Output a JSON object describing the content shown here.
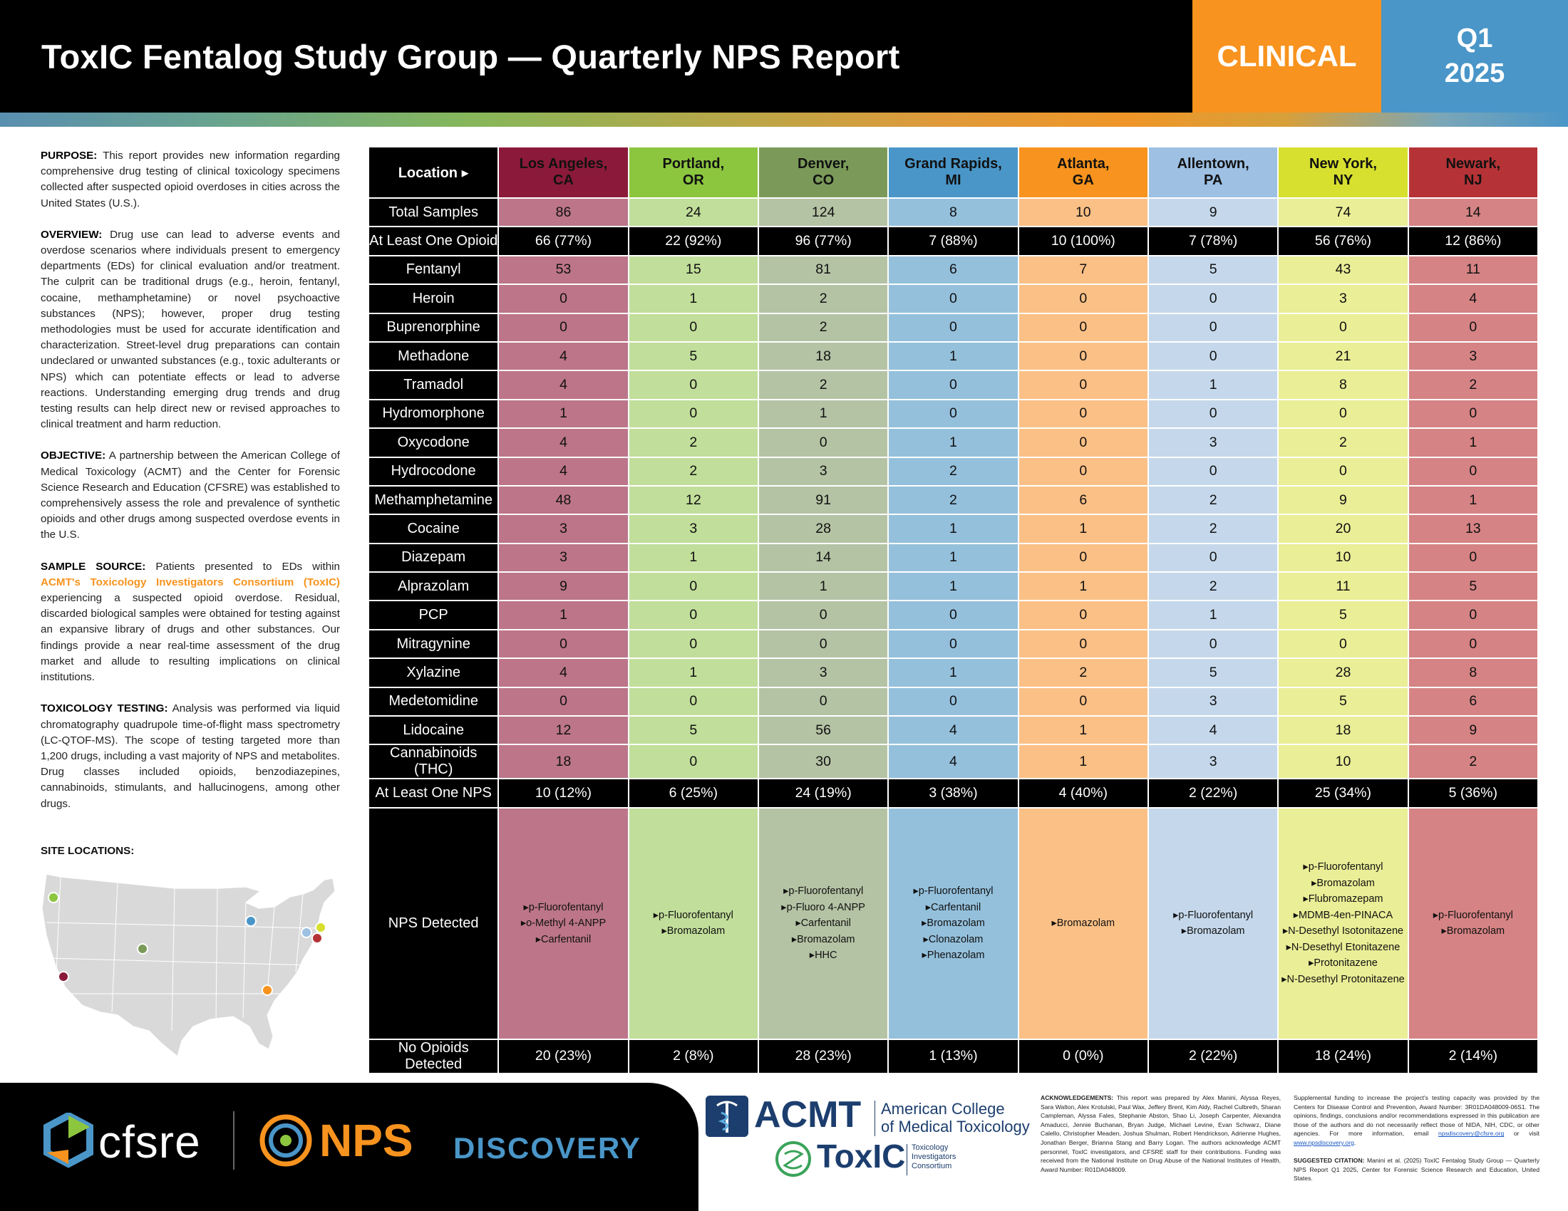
{
  "header": {
    "title": "ToxIC Fentalog Study Group — Quarterly NPS Report",
    "category": "CLINICAL",
    "quarter": "Q1",
    "year": "2025"
  },
  "left": {
    "purpose_label": "PURPOSE:",
    "purpose_text": "This report provides new information regarding comprehensive drug testing of clinical toxicology specimens collected after suspected opioid overdoses in cities across the United States (U.S.).",
    "overview_label": "OVERVIEW:",
    "overview_text": "Drug use can lead to adverse events and overdose scenarios where individuals present to emergency departments (EDs) for clinical evaluation and/or treatment. The culprit can be traditional drugs (e.g., heroin, fentanyl, cocaine, methamphetamine) or novel psychoactive substances (NPS); however, proper drug testing methodologies must be used for accurate identification and characterization. Street-level drug preparations can contain undeclared or unwanted substances (e.g., toxic adulterants or NPS) which can potentiate effects or lead to adverse reactions. Understanding emerging drug trends and drug testing results can help direct new or revised approaches to clinical treatment and harm reduction.",
    "objective_label": "OBJECTIVE:",
    "objective_text": "A partnership between the American College of Medical Toxicology (ACMT) and the Center for Forensic Science Research and Education (CFSRE) was established to comprehensively assess the role and prevalence of synthetic opioids and other drugs among suspected overdose events in the U.S.",
    "sample_label": "SAMPLE SOURCE:",
    "sample_pre": "Patients presented to EDs within",
    "sample_highlight": "ACMT's Toxicology Investigators Consortium (ToxIC)",
    "sample_post": "experiencing a suspected opioid overdose. Residual, discarded biological samples were obtained for testing against an expansive library of drugs and other substances. Our findings provide a near real-time assessment of the drug market and allude to resulting implications on clinical institutions.",
    "testing_label": "TOXICOLOGY TESTING:",
    "testing_text": "Analysis was performed via liquid chromatography quadrupole time-of-flight mass spectrometry (LC-QTOF-MS). The scope of testing targeted more than 1,200 drugs, including a vast majority of NPS and metabolites. Drug classes included opioids, benzodiazepines, cannabinoids, stimulants, and hallucinogens, among other drugs.",
    "sites_label": "SITE LOCATIONS:"
  },
  "table": {
    "location_label": "Location ▸",
    "cities": [
      {
        "name": "Los Angeles,",
        "state": "CA",
        "color": "#8B1A3A"
      },
      {
        "name": "Portland,",
        "state": "OR",
        "color": "#8CC63F"
      },
      {
        "name": "Denver,",
        "state": "CO",
        "color": "#7B9A59"
      },
      {
        "name": "Grand Rapids,",
        "state": "MI",
        "color": "#4A96C8"
      },
      {
        "name": "Atlanta,",
        "state": "GA",
        "color": "#F7931E"
      },
      {
        "name": "Allentown,",
        "state": "PA",
        "color": "#9DC0E3"
      },
      {
        "name": "New York,",
        "state": "NY",
        "color": "#D7E02F"
      },
      {
        "name": "Newark,",
        "state": "NJ",
        "color": "#B53336"
      }
    ],
    "rows": [
      {
        "label": "Total Samples",
        "emph": false,
        "values": [
          "86",
          "24",
          "124",
          "8",
          "10",
          "9",
          "74",
          "14"
        ]
      },
      {
        "label": "At Least One Opioid",
        "emph": true,
        "values": [
          "66 (77%)",
          "22 (92%)",
          "96 (77%)",
          "7 (88%)",
          "10 (100%)",
          "7 (78%)",
          "56 (76%)",
          "12 (86%)"
        ]
      },
      {
        "label": "Fentanyl",
        "emph": false,
        "values": [
          "53",
          "15",
          "81",
          "6",
          "7",
          "5",
          "43",
          "11"
        ]
      },
      {
        "label": "Heroin",
        "emph": false,
        "values": [
          "0",
          "1",
          "2",
          "0",
          "0",
          "0",
          "3",
          "4"
        ]
      },
      {
        "label": "Buprenorphine",
        "emph": false,
        "values": [
          "0",
          "0",
          "2",
          "0",
          "0",
          "0",
          "0",
          "0"
        ]
      },
      {
        "label": "Methadone",
        "emph": false,
        "values": [
          "4",
          "5",
          "18",
          "1",
          "0",
          "0",
          "21",
          "3"
        ]
      },
      {
        "label": "Tramadol",
        "emph": false,
        "values": [
          "4",
          "0",
          "2",
          "0",
          "0",
          "1",
          "8",
          "2"
        ]
      },
      {
        "label": "Hydromorphone",
        "emph": false,
        "values": [
          "1",
          "0",
          "1",
          "0",
          "0",
          "0",
          "0",
          "0"
        ]
      },
      {
        "label": "Oxycodone",
        "emph": false,
        "values": [
          "4",
          "2",
          "0",
          "1",
          "0",
          "3",
          "2",
          "1"
        ]
      },
      {
        "label": "Hydrocodone",
        "emph": false,
        "values": [
          "4",
          "2",
          "3",
          "2",
          "0",
          "0",
          "0",
          "0"
        ]
      },
      {
        "label": "Methamphetamine",
        "emph": false,
        "values": [
          "48",
          "12",
          "91",
          "2",
          "6",
          "2",
          "9",
          "1"
        ]
      },
      {
        "label": "Cocaine",
        "emph": false,
        "values": [
          "3",
          "3",
          "28",
          "1",
          "1",
          "2",
          "20",
          "13"
        ]
      },
      {
        "label": "Diazepam",
        "emph": false,
        "values": [
          "3",
          "1",
          "14",
          "1",
          "0",
          "0",
          "10",
          "0"
        ]
      },
      {
        "label": "Alprazolam",
        "emph": false,
        "values": [
          "9",
          "0",
          "1",
          "1",
          "1",
          "2",
          "11",
          "5"
        ]
      },
      {
        "label": "PCP",
        "emph": false,
        "values": [
          "1",
          "0",
          "0",
          "0",
          "0",
          "1",
          "5",
          "0"
        ]
      },
      {
        "label": "Mitragynine",
        "emph": false,
        "values": [
          "0",
          "0",
          "0",
          "0",
          "0",
          "0",
          "0",
          "0"
        ]
      },
      {
        "label": "Xylazine",
        "emph": false,
        "values": [
          "4",
          "1",
          "3",
          "1",
          "2",
          "5",
          "28",
          "8"
        ]
      },
      {
        "label": "Medetomidine",
        "emph": false,
        "values": [
          "0",
          "0",
          "0",
          "0",
          "0",
          "3",
          "5",
          "6"
        ]
      },
      {
        "label": "Lidocaine",
        "emph": false,
        "values": [
          "12",
          "5",
          "56",
          "4",
          "1",
          "4",
          "18",
          "9"
        ]
      },
      {
        "label": "Cannabinoids (THC)",
        "emph": false,
        "values": [
          "18",
          "0",
          "30",
          "4",
          "1",
          "3",
          "10",
          "2"
        ]
      },
      {
        "label": "At Least One NPS",
        "emph": true,
        "values": [
          "10 (12%)",
          "6 (25%)",
          "24 (19%)",
          "3 (38%)",
          "4 (40%)",
          "2 (22%)",
          "25 (34%)",
          "5 (36%)"
        ]
      }
    ],
    "nps_label": "NPS Detected",
    "nps_detected": [
      [
        "▸p-Fluorofentanyl",
        "▸o-Methyl 4-ANPP",
        "▸Carfentanil"
      ],
      [
        "▸p-Fluorofentanyl",
        "▸Bromazolam"
      ],
      [
        "▸p-Fluorofentanyl",
        "▸p-Fluoro 4-ANPP",
        "▸Carfentanil",
        "▸Bromazolam",
        "▸HHC"
      ],
      [
        "▸p-Fluorofentanyl",
        "▸Carfentanil",
        "▸Bromazolam",
        "▸Clonazolam",
        "▸Phenazolam"
      ],
      [
        "▸Bromazolam"
      ],
      [
        "▸p-Fluorofentanyl",
        "▸Bromazolam"
      ],
      [
        "▸p-Fluorofentanyl",
        "▸Bromazolam",
        "▸Flubromazepam",
        "▸MDMB-4en-PINACA",
        "▸N-Desethyl Isotonitazene",
        "▸N-Desethyl Etonitazene",
        "▸Protonitazene",
        "▸N-Desethyl Protonitazene"
      ],
      [
        "▸p-Fluorofentanyl",
        "▸Bromazolam"
      ]
    ],
    "no_opioid_label": "No Opioids Detected",
    "no_opioid_values": [
      "20 (23%)",
      "2 (8%)",
      "28 (23%)",
      "1 (13%)",
      "0 (0%)",
      "2 (22%)",
      "18 (24%)",
      "2 (14%)"
    ]
  },
  "footer": {
    "cfsre": "cfsre",
    "nps": "NPS",
    "discovery": "DISCOVERY",
    "acmt": "ACMT",
    "acmt_name_1": "American College",
    "acmt_name_2": "of Medical Toxicology",
    "toxic": "ToxIC",
    "toxic_sub_1": "Toxicology",
    "toxic_sub_2": "Investigators",
    "toxic_sub_3": "Consortium",
    "ack_label": "ACKNOWLEDGEMENTS:",
    "ack_text": "This report was prepared by Alex Manini, Alyssa Reyes, Sara Walton, Alex Krotulski, Paul Wax, Jeffery Brent, Kim Aldy, Rachel Culbreth, Sharan Campleman, Alyssa Fales, Stephanie Abston, Shao Li, Joseph Carpenter, Alexandra Amaducci, Jennie Buchanan, Bryan Judge, Michael Levine, Evan Schwarz, Diane Calello, Christopher Meaden, Joshua Shulman, Robert Hendrickson, Adrienne Hughes, Jonathan Berger, Brianna Stang and Barry Logan. The authors acknowledge ACMT personnel, ToxIC investigators, and CFSRE staff for their contributions. Funding was received from the National Institute on Drug Abuse of the National Institutes of Health, Award Number: R01DA048009.",
    "supp_text": "Supplemental funding to increase the project's testing capacity was provided by the Centers for Disease Control and Prevention, Award Number: 3R01DA048009-06S1. The opinions, findings, conclusions and/or recommendations expressed in this publication are those of the authors and do not necessarily reflect those of NIDA, NIH, CDC, or other agencies. For more information, email",
    "supp_email": "npsdiscovery@cfsre.org",
    "supp_or_visit": "or visit",
    "supp_web": "www.npsdiscovery.org",
    "citation_label": "SUGGESTED CITATION:",
    "citation_text": "Manini et al. (2025) ToxIC Fentalog Study Group — Quarterly NPS Report Q1 2025, Center for Forensic Science Research and Education, United States."
  }
}
